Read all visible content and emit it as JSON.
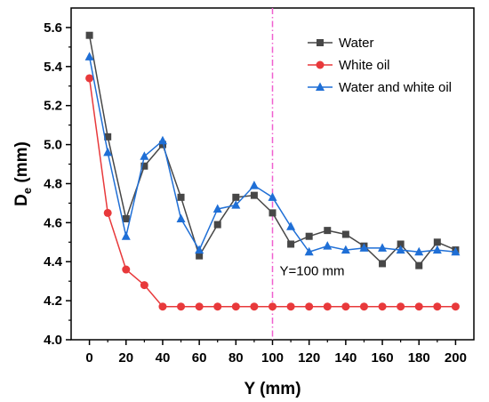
{
  "chart_data": {
    "type": "line",
    "xlabel": "Y (mm)",
    "ylabel_main": "D",
    "ylabel_sub": "e",
    "ylabel_unit": " (mm)",
    "xlim": [
      -10,
      210
    ],
    "ylim": [
      4.0,
      5.7
    ],
    "x_ticks": [
      0,
      20,
      40,
      60,
      80,
      100,
      120,
      140,
      160,
      180,
      200
    ],
    "y_ticks": [
      4.0,
      4.2,
      4.4,
      4.6,
      4.8,
      5.0,
      5.2,
      5.4,
      5.6
    ],
    "x_tick_labels": [
      "0",
      "20",
      "40",
      "60",
      "80",
      "100",
      "120",
      "140",
      "160",
      "180",
      "200"
    ],
    "y_tick_labels": [
      "4.0",
      "4.2",
      "4.4",
      "4.6",
      "4.8",
      "5.0",
      "5.2",
      "5.4",
      "5.6"
    ],
    "grid": false,
    "legend_position": "top-right",
    "x": [
      0,
      10,
      20,
      30,
      40,
      50,
      60,
      70,
      80,
      90,
      100,
      110,
      120,
      130,
      140,
      150,
      160,
      170,
      180,
      190,
      200
    ],
    "series": [
      {
        "name": "Water",
        "color": "#474747",
        "marker": "square",
        "values": [
          5.56,
          5.04,
          4.62,
          4.89,
          5.0,
          4.73,
          4.43,
          4.59,
          4.73,
          4.74,
          4.65,
          4.49,
          4.53,
          4.56,
          4.54,
          4.48,
          4.39,
          4.49,
          4.38,
          4.5,
          4.46
        ]
      },
      {
        "name": "White oil",
        "color": "#e8393b",
        "marker": "circle",
        "values": [
          5.34,
          4.65,
          4.36,
          4.28,
          4.17,
          4.17,
          4.17,
          4.17,
          4.17,
          4.17,
          4.17,
          4.17,
          4.17,
          4.17,
          4.17,
          4.17,
          4.17,
          4.17,
          4.17,
          4.17,
          4.17
        ]
      },
      {
        "name": "Water and white oil",
        "color": "#1f6fd6",
        "marker": "triangle",
        "values": [
          5.45,
          4.96,
          4.53,
          4.94,
          5.02,
          4.62,
          4.46,
          4.67,
          4.69,
          4.79,
          4.73,
          4.58,
          4.45,
          4.48,
          4.46,
          4.47,
          4.47,
          4.46,
          4.45,
          4.46,
          4.45
        ]
      }
    ],
    "reference_line": {
      "x": 100,
      "color": "#f060d0",
      "label": "Y=100 mm"
    }
  }
}
